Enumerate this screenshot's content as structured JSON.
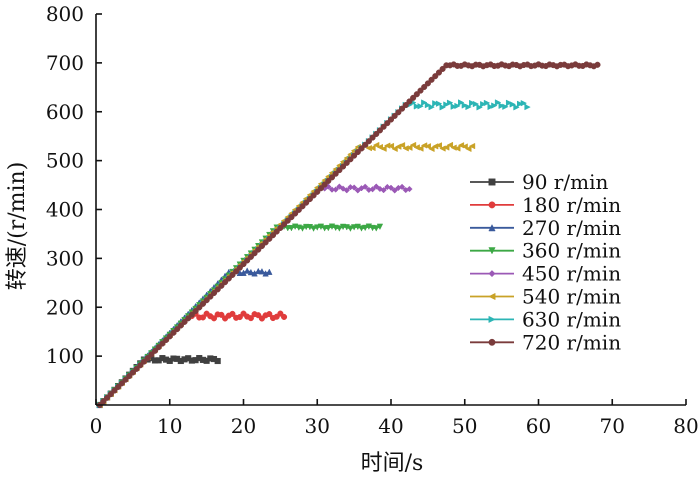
{
  "chart_data": {
    "type": "line",
    "xlabel": "时间/s",
    "ylabel": "转速/(r/min)",
    "xlim": [
      0,
      80
    ],
    "ylim": [
      0,
      800
    ],
    "x_ticks": [
      0,
      10,
      20,
      30,
      40,
      50,
      60,
      70,
      80
    ],
    "y_ticks": [
      100,
      200,
      300,
      400,
      500,
      600,
      700,
      800
    ],
    "x_tick_labels": [
      "0",
      "10",
      "20",
      "30",
      "40",
      "50",
      "60",
      "70",
      "80"
    ],
    "y_tick_labels": [
      "100",
      "200",
      "300",
      "400",
      "500",
      "600",
      "700",
      "800"
    ],
    "grid": false,
    "legend_position": "right",
    "series": [
      {
        "name": "90 r/min",
        "color": "#404040",
        "marker": "square",
        "ramp": [
          [
            0.5,
            0
          ],
          [
            6.5,
            93
          ]
        ],
        "plateau": [
          6.5,
          16.5
        ],
        "level": 93,
        "ripple": 3
      },
      {
        "name": "180 r/min",
        "color": "#e03c3c",
        "marker": "circle",
        "ramp": [
          [
            0.5,
            0
          ],
          [
            12.5,
            182
          ]
        ],
        "plateau": [
          12.5,
          25.5
        ],
        "level": 182,
        "ripple": 5
      },
      {
        "name": "270 r/min",
        "color": "#3a5a9c",
        "marker": "triangle-up",
        "ramp": [
          [
            0.5,
            0
          ],
          [
            18,
            272
          ]
        ],
        "plateau": [
          18,
          23.5
        ],
        "level": 272,
        "ripple": 3
      },
      {
        "name": "360 r/min",
        "color": "#3ca845",
        "marker": "triangle-down",
        "ramp": [
          [
            0.5,
            0
          ],
          [
            24.5,
            363
          ]
        ],
        "plateau": [
          24.5,
          38.5
        ],
        "level": 363,
        "ripple": 2
      },
      {
        "name": "450 r/min",
        "color": "#9b59b6",
        "marker": "diamond",
        "ramp": [
          [
            0.5,
            0
          ],
          [
            30.5,
            443
          ]
        ],
        "plateau": [
          30.5,
          42.5
        ],
        "level": 443,
        "ripple": 4
      },
      {
        "name": "540 r/min",
        "color": "#c9a227",
        "marker": "triangle-left",
        "ramp": [
          [
            0.5,
            0
          ],
          [
            35.5,
            528
          ]
        ],
        "plateau": [
          35.5,
          51
        ],
        "level": 528,
        "ripple": 4
      },
      {
        "name": "630 r/min",
        "color": "#2cb5b5",
        "marker": "triangle-right",
        "ramp": [
          [
            0.5,
            0
          ],
          [
            42,
            614
          ]
        ],
        "plateau": [
          42,
          58.5
        ],
        "level": 614,
        "ripple": 5
      },
      {
        "name": "720 r/min",
        "color": "#7a3b3b",
        "marker": "circle",
        "ramp": [
          [
            0.5,
            0
          ],
          [
            47.5,
            695
          ]
        ],
        "plateau": [
          47.5,
          68
        ],
        "level": 695,
        "ripple": 2
      }
    ]
  }
}
